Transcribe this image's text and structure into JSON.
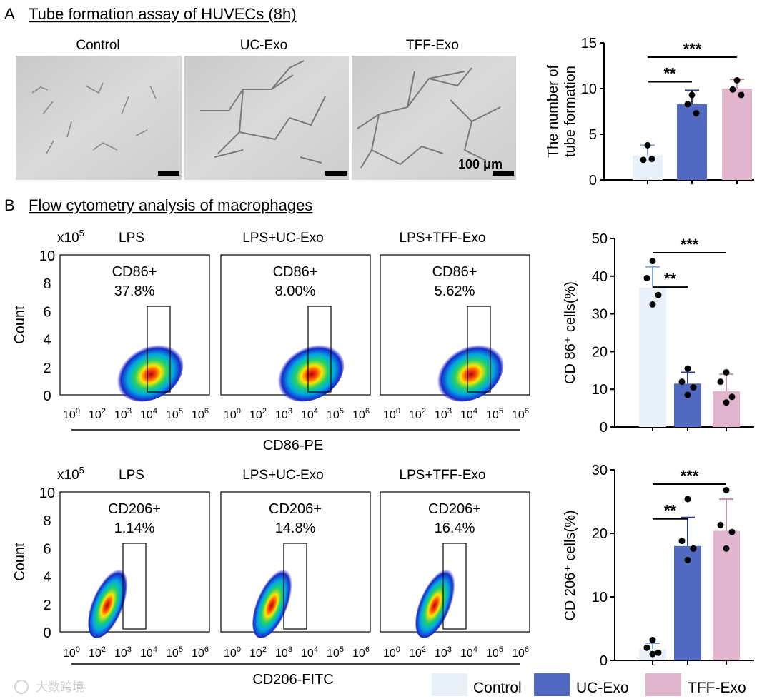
{
  "figure": {
    "panel_a": {
      "letter": "A",
      "title": "Tube formation assay of HUVECs (8h)"
    },
    "panel_b": {
      "letter": "B",
      "title": "Flow cytometry analysis of macrophages"
    },
    "micrographs": {
      "labels": [
        "Control",
        "UC-Exo",
        "TFF-Exo"
      ],
      "scale_label": "100 μm"
    },
    "flow": {
      "x10": "x10",
      "x10_exp": "5",
      "y_title": "Count",
      "y_ticks": [
        "10",
        "8",
        "6",
        "4",
        "2",
        "0"
      ],
      "x_ticks": [
        "0",
        "2",
        "3",
        "4",
        "5",
        "6"
      ],
      "rows": [
        {
          "xlabel": "CD86-PE",
          "panels": [
            {
              "condition": "LPS",
              "gate": "CD86+",
              "percent": "37.8%"
            },
            {
              "condition": "LPS+UC-Exo",
              "gate": "CD86+",
              "percent": "8.00%"
            },
            {
              "condition": "LPS+TFF-Exo",
              "gate": "CD86+",
              "percent": "5.62%"
            }
          ]
        },
        {
          "xlabel": "CD206-FITC",
          "panels": [
            {
              "condition": "LPS",
              "gate": "CD206+",
              "percent": "1.14%"
            },
            {
              "condition": "LPS+UC-Exo",
              "gate": "CD206+",
              "percent": "14.8%"
            },
            {
              "condition": "LPS+TFF-Exo",
              "gate": "CD206+",
              "percent": "16.4%"
            }
          ]
        }
      ]
    },
    "legend": {
      "labels": [
        "Control",
        "UC-Exo",
        "TFF-Exo"
      ]
    },
    "watermark": "大数跨境"
  },
  "colors": {
    "control": "#e8f0fa",
    "uc_exo": "#5169c0",
    "tff_exo": "#e2b5cf",
    "error_control": "#7ba2d4"
  },
  "chart_data": [
    {
      "id": "tube",
      "type": "bar",
      "ylabel": [
        "The number of",
        "tube formation"
      ],
      "ylim": [
        0,
        15
      ],
      "yticks": [
        0,
        5,
        10,
        15
      ],
      "categories": [
        "Control",
        "UC-Exo",
        "TFF-Exo"
      ],
      "values": [
        2.7,
        8.3,
        10.0
      ],
      "errors": [
        1.1,
        1.5,
        1.0
      ],
      "points": [
        [
          3.8,
          2.2,
          2.3
        ],
        [
          9.3,
          8.3,
          7.3
        ],
        [
          10.9,
          9.9,
          9.3
        ]
      ],
      "significance": [
        {
          "from": 0,
          "to": 1,
          "label": "**"
        },
        {
          "from": 0,
          "to": 2,
          "label": "***"
        }
      ]
    },
    {
      "id": "cd86",
      "type": "bar",
      "ylabel": "CD 86⁺ cells(%)",
      "ylim": [
        0,
        50
      ],
      "yticks": [
        0,
        10,
        20,
        30,
        40,
        50
      ],
      "categories": [
        "Control",
        "UC-Exo",
        "TFF-Exo"
      ],
      "values": [
        37.0,
        11.5,
        9.5
      ],
      "errors": [
        5.5,
        3.0,
        4.5
      ],
      "points": [
        [
          44.0,
          39.5,
          35.0,
          32.5
        ],
        [
          15.5,
          12.0,
          10.5,
          8.5
        ],
        [
          14.5,
          12.0,
          8.0,
          6.5
        ]
      ],
      "significance": [
        {
          "from": 0,
          "to": 1,
          "label": "**"
        },
        {
          "from": 0,
          "to": 2,
          "label": "***"
        }
      ]
    },
    {
      "id": "cd206",
      "type": "bar",
      "ylabel": "CD 206⁺ cells(%)",
      "ylim": [
        0,
        30
      ],
      "yticks": [
        0,
        10,
        20,
        30
      ],
      "categories": [
        "Control",
        "UC-Exo",
        "TFF-Exo"
      ],
      "values": [
        1.8,
        18.0,
        20.4
      ],
      "errors": [
        0.9,
        4.5,
        5.0
      ],
      "points": [
        [
          3.2,
          2.0,
          1.2,
          1.0
        ],
        [
          25.4,
          18.8,
          17.6,
          15.8
        ],
        [
          26.8,
          21.3,
          20.2,
          17.6
        ]
      ],
      "significance": [
        {
          "from": 0,
          "to": 1,
          "label": "**"
        },
        {
          "from": 0,
          "to": 2,
          "label": "***"
        }
      ]
    }
  ]
}
